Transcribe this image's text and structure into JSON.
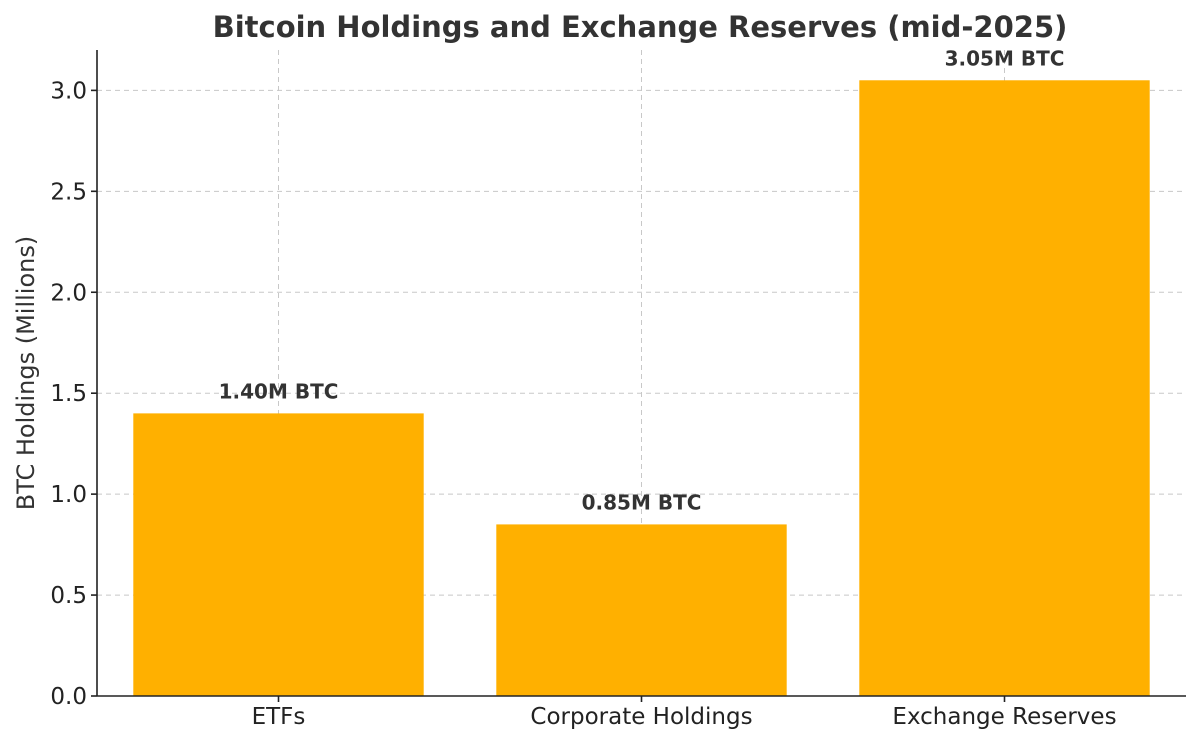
{
  "chart_data": {
    "type": "bar",
    "title": "Bitcoin Holdings and Exchange Reserves (mid-2025)",
    "xlabel": "",
    "ylabel": "BTC Holdings (Millions)",
    "categories": [
      "ETFs",
      "Corporate Holdings",
      "Exchange Reserves"
    ],
    "values": [
      1.4,
      0.85,
      3.05
    ],
    "data_labels": [
      "1.40M BTC",
      "0.85M BTC",
      "3.05M BTC"
    ],
    "ylim": [
      0,
      3.2
    ],
    "yticks": [
      0.0,
      0.5,
      1.0,
      1.5,
      2.0,
      2.5,
      3.0
    ],
    "ytick_labels": [
      "0.0",
      "0.5",
      "1.0",
      "1.5",
      "2.0",
      "2.5",
      "3.0"
    ],
    "grid": true,
    "bar_color": "#FFB000"
  }
}
